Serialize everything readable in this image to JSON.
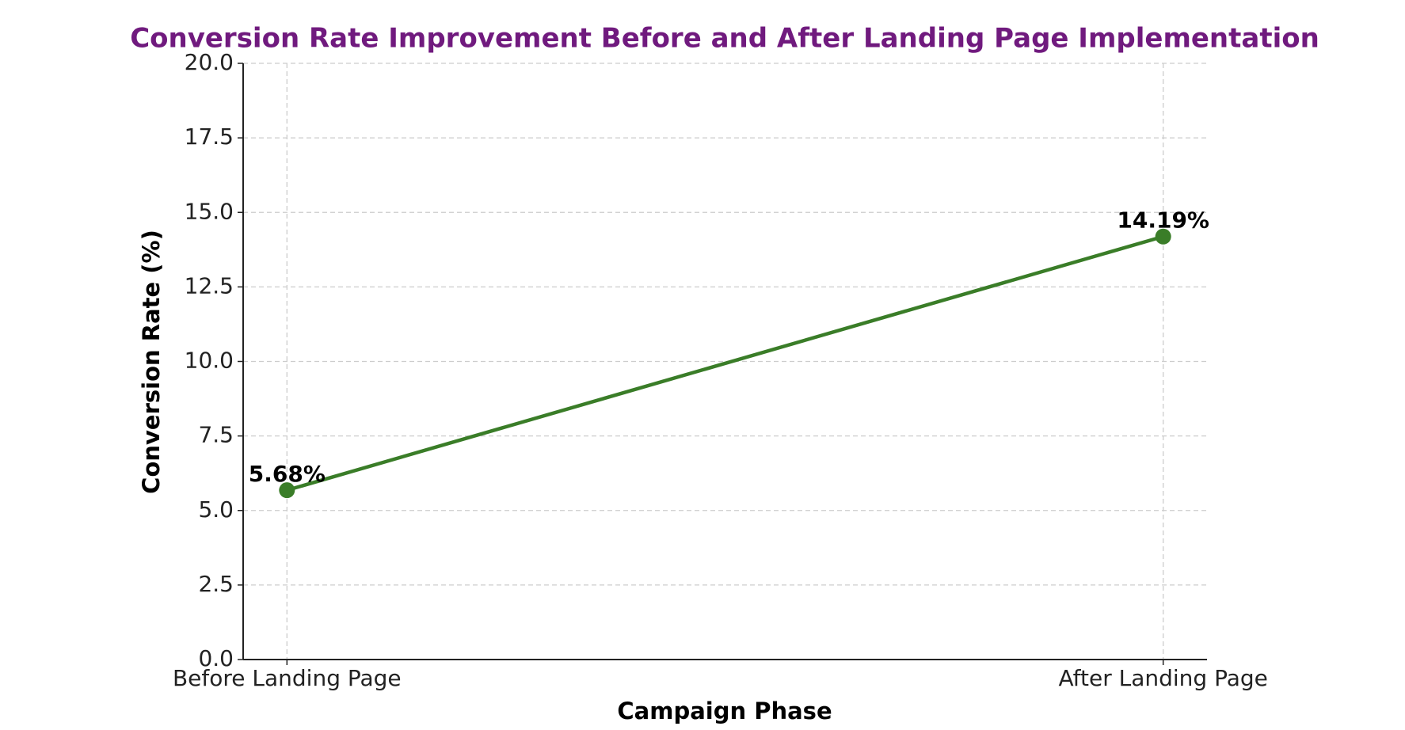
{
  "chart_data": {
    "type": "line",
    "title": "Conversion Rate Improvement Before and After Landing Page Implementation",
    "x_label": "Campaign Phase",
    "y_label": "Conversion Rate (%)",
    "categories": [
      "Before Landing Page",
      "After Landing Page"
    ],
    "values": [
      5.68,
      14.19
    ],
    "value_labels": [
      "5.68%",
      "14.19%"
    ],
    "color": "#3a7d28",
    "ylim": [
      0,
      20
    ],
    "yticks": [
      {
        "value": 0,
        "label": "0.0"
      },
      2.5,
      {
        "value": 5,
        "label": "5.0"
      },
      7.5,
      {
        "value": 10,
        "label": "10.0"
      },
      12.5,
      {
        "value": 15,
        "label": "15.0"
      },
      17.5,
      {
        "value": 20,
        "label": "20.0"
      }
    ],
    "grid": true
  }
}
